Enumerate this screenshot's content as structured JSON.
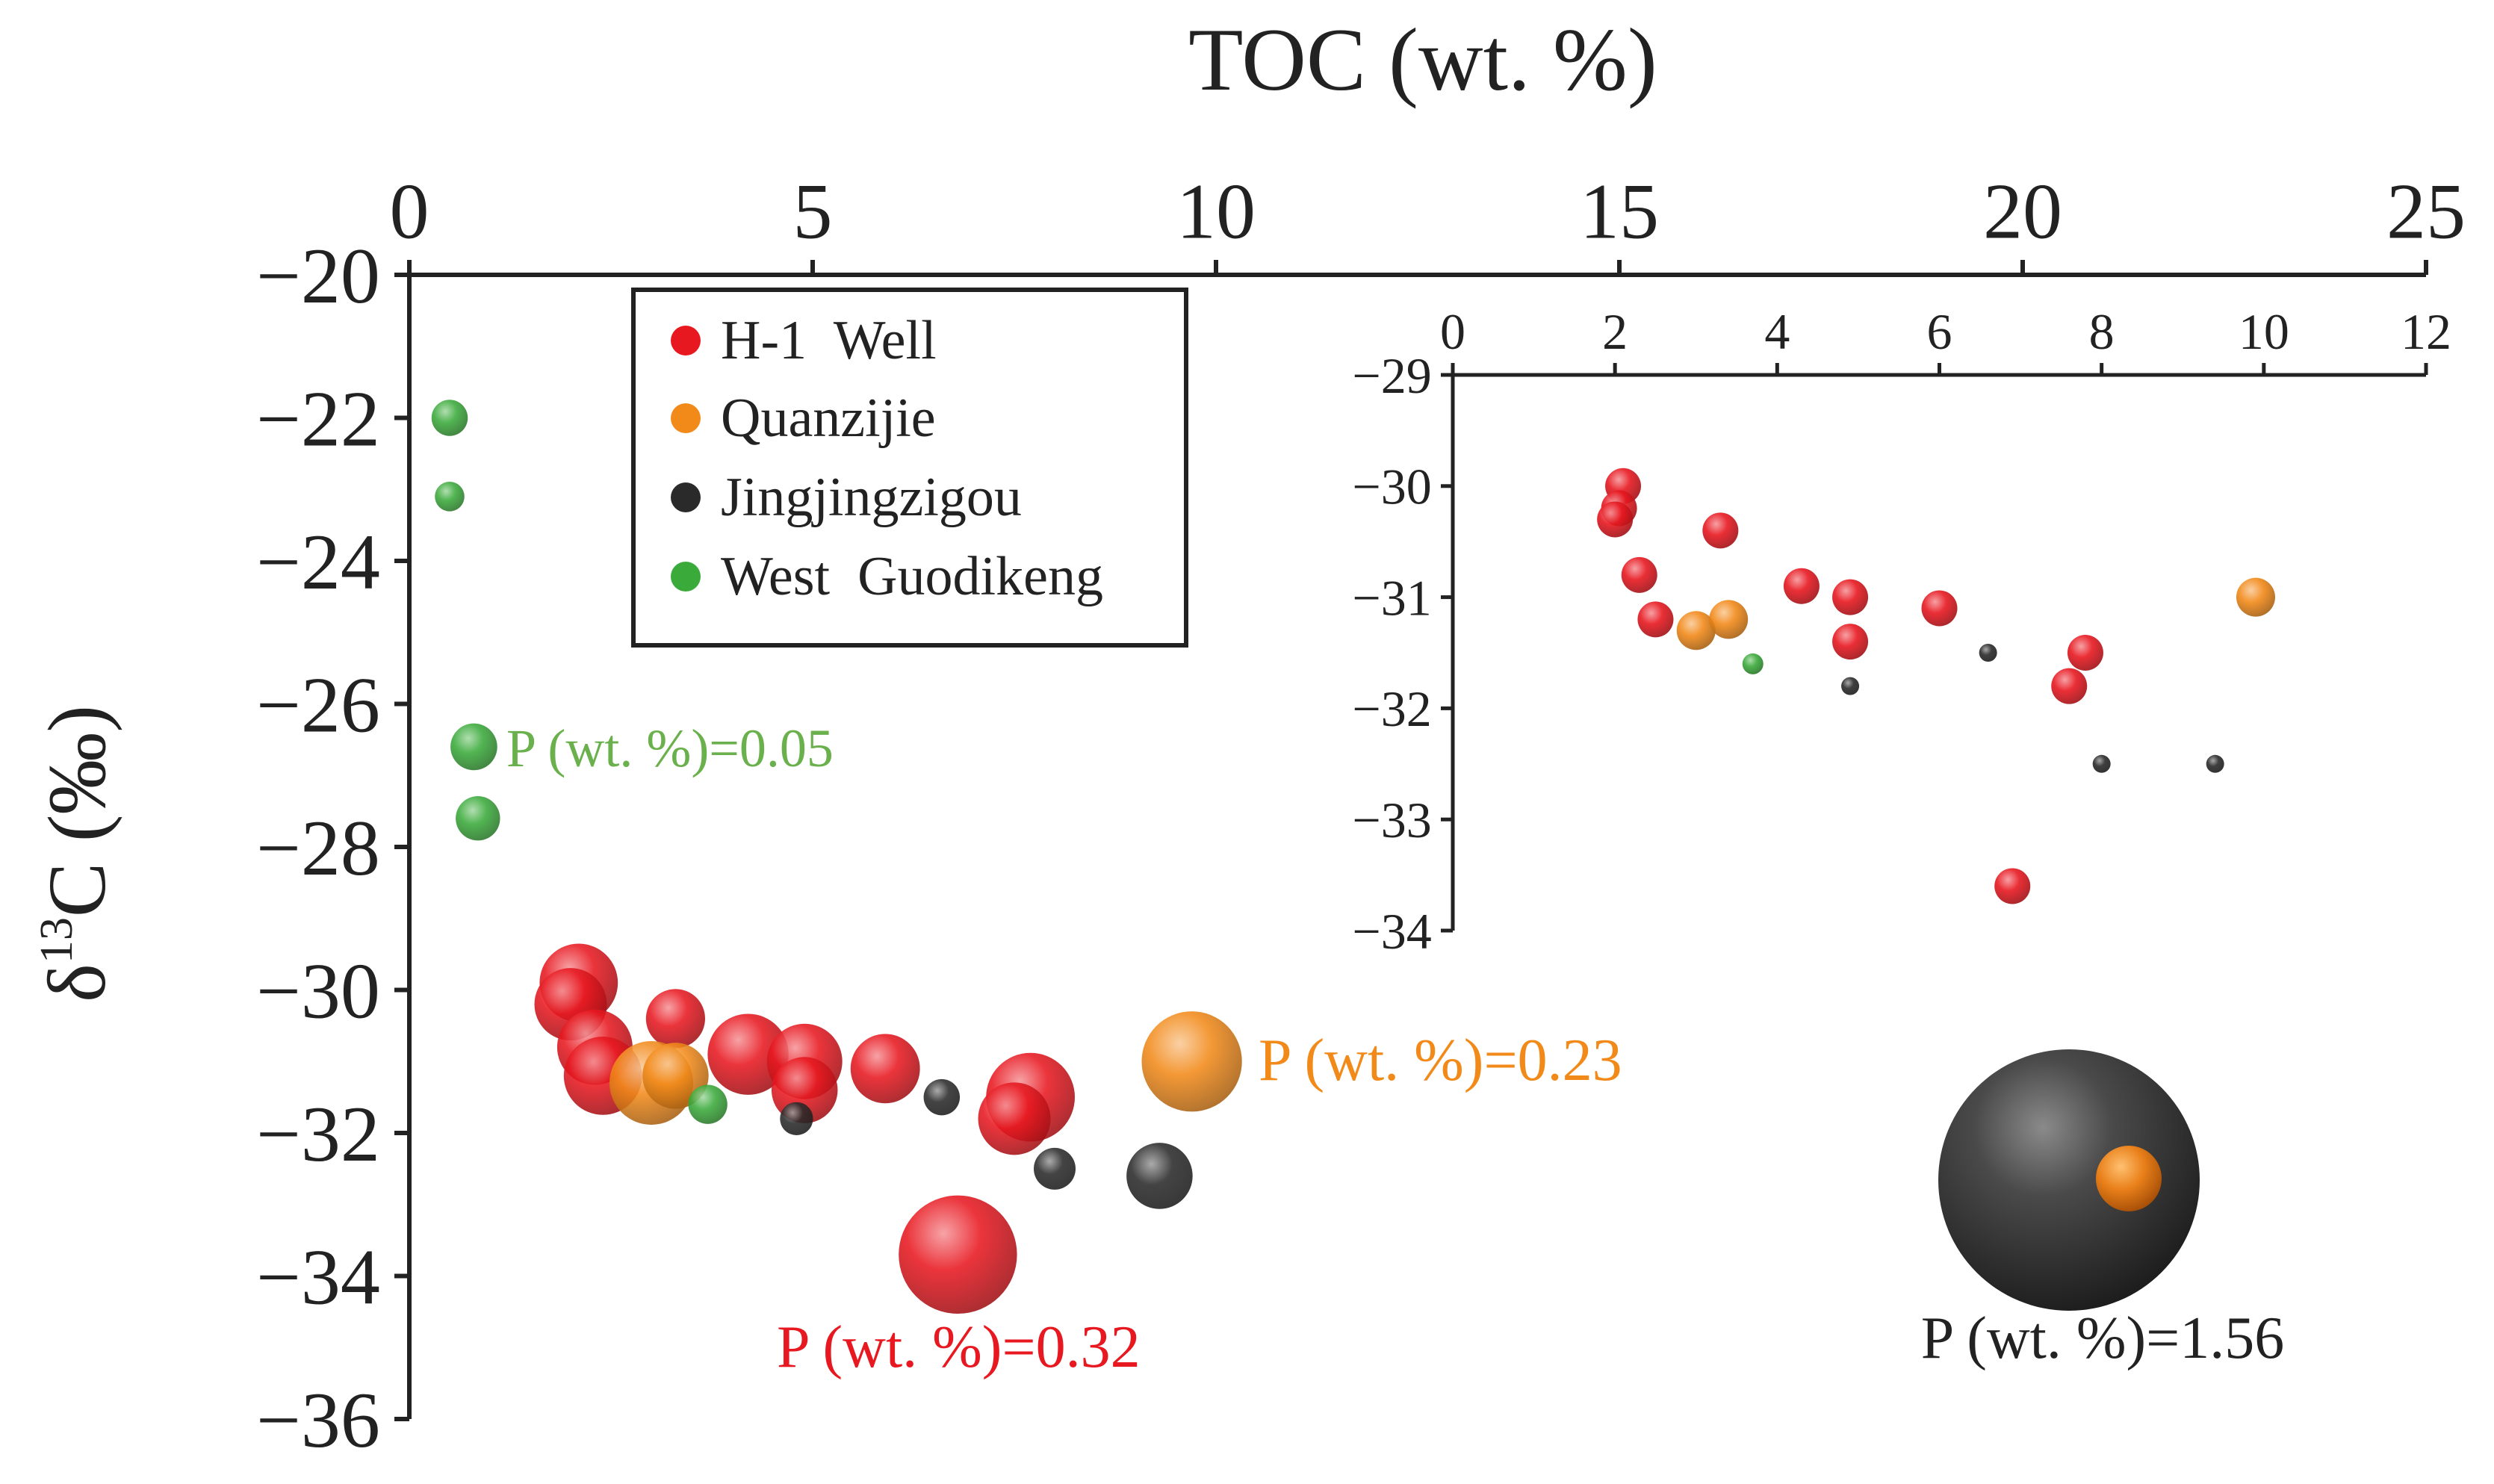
{
  "chart_data": [
    {
      "type": "scatter",
      "title": "",
      "xlabel": "TOC (wt. %)",
      "ylabel_prefix": "δ",
      "ylabel_superscript": "13",
      "ylabel_suffix": "C (‰)",
      "xlim": [
        0,
        25
      ],
      "ylim": [
        -36,
        -20
      ],
      "x_ticks": [
        "0",
        "5",
        "10",
        "15",
        "20",
        "25"
      ],
      "y_ticks": [
        "−20",
        "−22",
        "−24",
        "−26",
        "−28",
        "−30",
        "−32",
        "−34",
        "−36"
      ],
      "x_axis_position": "top",
      "grid": false,
      "legend": {
        "placement": "top-left",
        "entries": [
          {
            "label": "H-1  Well",
            "color": "#e81820"
          },
          {
            "label": "Quanzijie",
            "color": "#f28a1a"
          },
          {
            "label": "Jingjingzigou",
            "color": "#2a2a2a"
          },
          {
            "label": "West  Guodikeng",
            "color": "#3aaa3a"
          }
        ]
      },
      "series": [
        {
          "name": "H-1  Well",
          "color": "#e81820",
          "points": [
            {
              "x": 2.1,
              "y": -29.9,
              "p": 0.14
            },
            {
              "x": 2.0,
              "y": -30.2,
              "p": 0.12
            },
            {
              "x": 2.3,
              "y": -30.8,
              "p": 0.13
            },
            {
              "x": 2.4,
              "y": -31.2,
              "p": 0.14
            },
            {
              "x": 3.3,
              "y": -30.4,
              "p": 0.08
            },
            {
              "x": 4.2,
              "y": -30.9,
              "p": 0.15
            },
            {
              "x": 4.9,
              "y": -31.0,
              "p": 0.13
            },
            {
              "x": 4.9,
              "y": -31.4,
              "p": 0.1
            },
            {
              "x": 5.9,
              "y": -31.1,
              "p": 0.11
            },
            {
              "x": 7.7,
              "y": -31.5,
              "p": 0.18
            },
            {
              "x": 7.5,
              "y": -31.8,
              "p": 0.12
            },
            {
              "x": 6.8,
              "y": -33.7,
              "p": 0.32
            }
          ]
        },
        {
          "name": "Quanzijie",
          "color": "#f28a1a",
          "points": [
            {
              "x": 3.0,
              "y": -31.3,
              "p": 0.16
            },
            {
              "x": 3.3,
              "y": -31.2,
              "p": 0.1
            },
            {
              "x": 9.7,
              "y": -31.0,
              "p": 0.23
            }
          ]
        },
        {
          "name": "Jingjingzigou",
          "color": "#2a2a2a",
          "points": [
            {
              "x": 4.8,
              "y": -31.8,
              "p": 0.025
            },
            {
              "x": 6.6,
              "y": -31.5,
              "p": 0.03
            },
            {
              "x": 8.0,
              "y": -32.5,
              "p": 0.04
            },
            {
              "x": 9.3,
              "y": -32.6,
              "p": 0.1
            }
          ]
        },
        {
          "name": "West  Guodikeng",
          "color": "#3aaa3a",
          "points": [
            {
              "x": 0.5,
              "y": -22.0,
              "p": 0.03
            },
            {
              "x": 0.5,
              "y": -23.1,
              "p": 0.02
            },
            {
              "x": 0.8,
              "y": -26.6,
              "p": 0.05
            },
            {
              "x": 0.85,
              "y": -27.6,
              "p": 0.045
            },
            {
              "x": 3.7,
              "y": -31.6,
              "p": 0.035
            }
          ]
        }
      ],
      "annotations": [
        {
          "text": "P (wt. %)=0.05",
          "color": "#6ab04c"
        },
        {
          "text": "P (wt. %)=0.23",
          "color": "#f28a1a"
        },
        {
          "text": "P (wt. %)=0.32",
          "color": "#e81820"
        },
        {
          "text": "P (wt. %)=1.56",
          "color": "#222222"
        }
      ],
      "size_legend": {
        "label": "P (wt. %)=1.56",
        "outer_p": 1.56,
        "outer_color": "#3a3a3a",
        "inner_color": "#f28a1a"
      }
    },
    {
      "type": "scatter",
      "title": "",
      "inset": true,
      "xlim": [
        0,
        12
      ],
      "ylim": [
        -34,
        -29
      ],
      "x_ticks": [
        "0",
        "2",
        "4",
        "6",
        "8",
        "10",
        "12"
      ],
      "y_ticks": [
        "−29",
        "−30",
        "−31",
        "−32",
        "−33",
        "−34"
      ],
      "x_axis_position": "top",
      "grid": false,
      "series": [
        {
          "name": "H-1  Well",
          "color": "#e81820",
          "points": [
            {
              "x": 2.1,
              "y": -30.0
            },
            {
              "x": 2.05,
              "y": -30.2
            },
            {
              "x": 2.0,
              "y": -30.3
            },
            {
              "x": 2.3,
              "y": -30.8
            },
            {
              "x": 2.5,
              "y": -31.2
            },
            {
              "x": 3.3,
              "y": -30.4
            },
            {
              "x": 4.3,
              "y": -30.9
            },
            {
              "x": 4.9,
              "y": -31.0
            },
            {
              "x": 4.9,
              "y": -31.4
            },
            {
              "x": 6.0,
              "y": -31.1
            },
            {
              "x": 7.8,
              "y": -31.5
            },
            {
              "x": 7.6,
              "y": -31.8
            },
            {
              "x": 6.9,
              "y": -33.6
            }
          ]
        },
        {
          "name": "Quanzijie",
          "color": "#f28a1a",
          "points": [
            {
              "x": 3.0,
              "y": -31.3
            },
            {
              "x": 3.4,
              "y": -31.2
            },
            {
              "x": 9.9,
              "y": -31.0
            }
          ]
        },
        {
          "name": "Jingjingzigou",
          "color": "#2a2a2a",
          "points": [
            {
              "x": 4.9,
              "y": -31.8
            },
            {
              "x": 6.6,
              "y": -31.5
            },
            {
              "x": 8.0,
              "y": -32.5
            },
            {
              "x": 9.4,
              "y": -32.5
            }
          ]
        },
        {
          "name": "West  Guodikeng",
          "color": "#3aaa3a",
          "points": [
            {
              "x": 3.7,
              "y": -31.6
            }
          ]
        }
      ]
    }
  ]
}
